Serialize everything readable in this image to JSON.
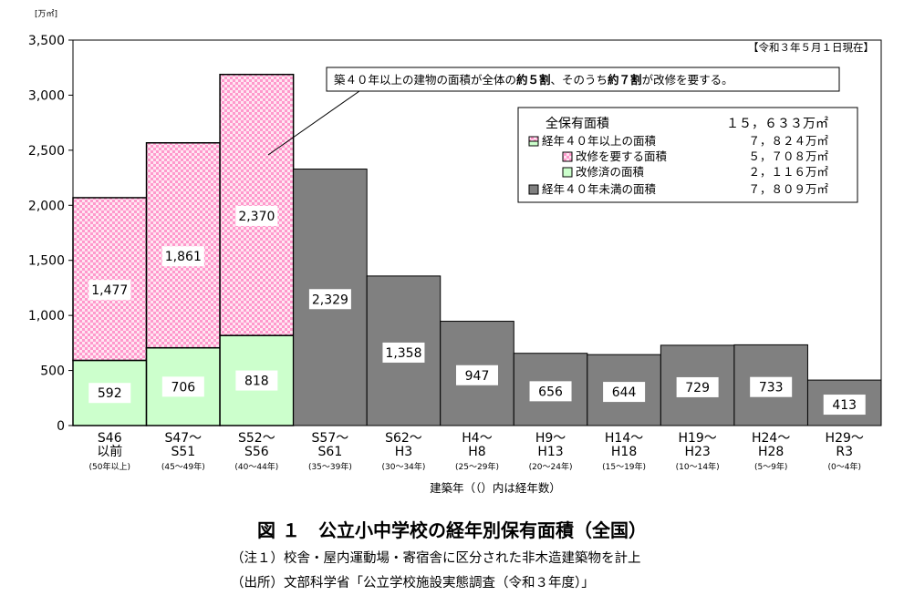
{
  "chart_data": {
    "type": "bar",
    "title": "",
    "unit_label": "[万㎡]",
    "as_of": "【令和３年５月１日現在】",
    "xlabel": "建築年（（）内は経年数）",
    "ylabel": "",
    "ylim": [
      0,
      3500
    ],
    "yticks": [
      0,
      500,
      1000,
      1500,
      2000,
      2500,
      3000,
      3500
    ],
    "ytick_labels": [
      "0",
      "500",
      "1,000",
      "1,500",
      "2,000",
      "2,500",
      "3,000",
      "3,500"
    ],
    "grid": false,
    "categories": [
      {
        "label1": "S46",
        "label2": "以前",
        "age": "(50年以上)"
      },
      {
        "label1": "S47〜",
        "label2": "S51",
        "age": "(45〜49年)"
      },
      {
        "label1": "S52〜",
        "label2": "S56",
        "age": "(40〜44年)"
      },
      {
        "label1": "S57〜",
        "label2": "S61",
        "age": "(35〜39年)"
      },
      {
        "label1": "S62〜",
        "label2": "H3",
        "age": "(30〜34年)"
      },
      {
        "label1": "H4〜",
        "label2": "H8",
        "age": "(25〜29年)"
      },
      {
        "label1": "H9〜",
        "label2": "H13",
        "age": "(20〜24年)"
      },
      {
        "label1": "H14〜",
        "label2": "H18",
        "age": "(15〜19年)"
      },
      {
        "label1": "H19〜",
        "label2": "H23",
        "age": "(10〜14年)"
      },
      {
        "label1": "H24〜",
        "label2": "H28",
        "age": "(5〜9年)"
      },
      {
        "label1": "H29〜",
        "label2": "R3",
        "age": "(0〜4年)"
      }
    ],
    "series": [
      {
        "key": "renovated",
        "values": [
          592,
          706,
          818,
          null,
          null,
          null,
          null,
          null,
          null,
          null,
          null
        ],
        "color": "#ccffcc",
        "pattern": "solid"
      },
      {
        "key": "needs_renovation",
        "values": [
          1477,
          1861,
          2370,
          null,
          null,
          null,
          null,
          null,
          null,
          null,
          null
        ],
        "color": "#ff99cc",
        "pattern": "checker"
      },
      {
        "key": "under40",
        "values": [
          null,
          null,
          null,
          2329,
          1358,
          947,
          656,
          644,
          729,
          733,
          413
        ],
        "color": "#808080",
        "pattern": "solid"
      }
    ],
    "value_labels": [
      "592",
      "706",
      "818",
      "1,477",
      "1,861",
      "2,370",
      "2,329",
      "1,358",
      "947",
      "656",
      "644",
      "729",
      "733",
      "413"
    ],
    "callout": {
      "parts": [
        {
          "text": "築４０年以上の建物の面積が全体の",
          "bold": false
        },
        {
          "text": "約５割",
          "bold": true
        },
        {
          "text": "、そのうち",
          "bold": false
        },
        {
          "text": "約７割",
          "bold": true
        },
        {
          "text": "が改修を要する。",
          "bold": false
        }
      ]
    },
    "legend": {
      "position": "top-right",
      "total_label": "全保有面積",
      "total_value": "１５，６３３万㎡",
      "items": [
        {
          "label": "経年４０年以上の面積",
          "value": "７，８２４万㎡",
          "swatch": "split"
        },
        {
          "label": "改修を要する面積",
          "value": "５，７０８万㎡",
          "swatch": "checker"
        },
        {
          "label": "改修済の面積",
          "value": "２，１１６万㎡",
          "swatch": "green"
        },
        {
          "label": "経年４０年未満の面積",
          "value": "７，８０９万㎡",
          "swatch": "gray"
        }
      ]
    }
  },
  "figure": {
    "title": "図 １　公立小中学校の経年別保有面積（全国）",
    "note": "（注１）校舎・屋内運動場・寄宿舎に区分された非木造建築物を計上",
    "source": "（出所）文部科学省「公立学校施設実態調査（令和３年度）」"
  },
  "colors": {
    "pink": "#ff99cc",
    "pink_bg": "#ffe6f2",
    "green": "#ccffcc",
    "gray": "#808080"
  }
}
